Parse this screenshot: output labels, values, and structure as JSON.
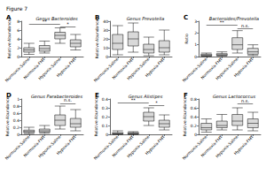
{
  "figure_title": "Figure 7",
  "chart_data": [
    {
      "type": "boxplot",
      "panel": "A",
      "title": "Genus Bacteroides",
      "ylabel": "Relative Abundance",
      "categories": [
        "Normoxia-Saline",
        "Normoxia-FMT",
        "Hypoxia-Saline",
        "Hypoxia-FMT"
      ],
      "boxes": [
        [
          0.5,
          1,
          1.5,
          2,
          3
        ],
        [
          0.8,
          1.2,
          1.8,
          2.5,
          3.5
        ],
        [
          3,
          4,
          4.8,
          5.5,
          6.5
        ],
        [
          1.5,
          2.2,
          3,
          3.8,
          5
        ]
      ],
      "ylim": [
        0,
        8
      ],
      "yticks": [
        0,
        2,
        4,
        6,
        8
      ],
      "grid": false,
      "color": "#d9d9d9",
      "annotations": [
        {
          "from": "Normoxia-Saline",
          "to": "Hypoxia-Saline",
          "label": "**",
          "y": 7.3
        },
        {
          "from": "Hypoxia-Saline",
          "to": "Hypoxia-FMT",
          "label": "*",
          "y": 6.8
        }
      ]
    },
    {
      "type": "boxplot",
      "panel": "B",
      "title": "Genus Prevotella",
      "ylabel": "Relative Abundance",
      "categories": [
        "Normoxia-Saline",
        "Normoxia-FMT",
        "Hypoxia-Saline",
        "Hypoxia-FMT"
      ],
      "boxes": [
        [
          2,
          8,
          15,
          25,
          35
        ],
        [
          5,
          12,
          20,
          28,
          38
        ],
        [
          1,
          4,
          8,
          14,
          22
        ],
        [
          2,
          5,
          10,
          18,
          30
        ]
      ],
      "ylim": [
        0,
        40
      ],
      "yticks": [
        0,
        10,
        20,
        30,
        40
      ],
      "grid": false,
      "color": "#d9d9d9",
      "annotations": []
    },
    {
      "type": "boxplot",
      "panel": "C",
      "title": "Bacteroides/Prevotella",
      "ylabel": "Ratio",
      "categories": [
        "Normoxia-Saline",
        "Normoxia-FMT",
        "Hypoxia-Saline",
        "Hypoxia-FMT"
      ],
      "boxes": [
        [
          0.02,
          0.05,
          0.1,
          0.2,
          0.3
        ],
        [
          0.05,
          0.1,
          0.15,
          0.25,
          0.4
        ],
        [
          0.3,
          0.6,
          1,
          1.6,
          2.2
        ],
        [
          0.1,
          0.2,
          0.4,
          0.7,
          1
        ]
      ],
      "ylim": [
        0,
        3
      ],
      "yticks": [
        0,
        1,
        2,
        3
      ],
      "grid": false,
      "color": "#d9d9d9",
      "annotations": [
        {
          "from": "Normoxia-Saline",
          "to": "Hypoxia-Saline",
          "label": "**",
          "y": 2.7
        },
        {
          "from": "Hypoxia-Saline",
          "to": "Hypoxia-FMT",
          "label": "n.s.",
          "y": 2.4
        }
      ]
    },
    {
      "type": "boxplot",
      "panel": "D",
      "title": "Genus Parabacteroides",
      "ylabel": "Relative Abundance",
      "categories": [
        "Normoxia-Saline",
        "Normoxia-FMT",
        "Hypoxia-Saline",
        "Hypoxia-FMT"
      ],
      "boxes": [
        [
          0.02,
          0.05,
          0.08,
          0.12,
          0.2
        ],
        [
          0.03,
          0.06,
          0.1,
          0.15,
          0.25
        ],
        [
          0.15,
          0.25,
          0.4,
          0.55,
          0.8
        ],
        [
          0.1,
          0.2,
          0.3,
          0.45,
          0.7
        ]
      ],
      "ylim": [
        0,
        1
      ],
      "yticks": [
        0,
        0.2,
        0.4,
        0.6,
        0.8,
        1
      ],
      "grid": false,
      "color": "#d9d9d9",
      "annotations": [
        {
          "from": "Hypoxia-Saline",
          "to": "Hypoxia-FMT",
          "label": "n.s.",
          "y": 0.88
        }
      ]
    },
    {
      "type": "boxplot",
      "panel": "E",
      "title": "Genus Alistipes",
      "ylabel": "Relative Abundance",
      "categories": [
        "Normoxia-Saline",
        "Normoxia-FMT",
        "Hypoxia-Saline",
        "Hypoxia-FMT"
      ],
      "boxes": [
        [
          0,
          0.005,
          0.01,
          0.02,
          0.04
        ],
        [
          0,
          0.005,
          0.01,
          0.02,
          0.03
        ],
        [
          0.1,
          0.15,
          0.2,
          0.25,
          0.3
        ],
        [
          0.05,
          0.08,
          0.12,
          0.16,
          0.22
        ]
      ],
      "ylim": [
        0,
        0.4
      ],
      "yticks": [
        0,
        0.1,
        0.2,
        0.3,
        0.4
      ],
      "grid": false,
      "color": "#d9d9d9",
      "annotations": [
        {
          "from": "Normoxia-Saline",
          "to": "Hypoxia-Saline",
          "label": "**",
          "y": 0.36
        },
        {
          "from": "Hypoxia-Saline",
          "to": "Hypoxia-FMT",
          "label": "*",
          "y": 0.33
        }
      ]
    },
    {
      "type": "boxplot",
      "panel": "F",
      "title": "Genus Lactococcus",
      "ylabel": "Relative Abundance",
      "categories": [
        "Normoxia-Saline",
        "Normoxia-FMT",
        "Hypoxia-Saline",
        "Hypoxia-FMT"
      ],
      "boxes": [
        [
          0.05,
          0.1,
          0.15,
          0.25,
          0.35
        ],
        [
          0.1,
          0.15,
          0.2,
          0.3,
          0.45
        ],
        [
          0.1,
          0.2,
          0.3,
          0.45,
          0.6
        ],
        [
          0.08,
          0.15,
          0.25,
          0.35,
          0.5
        ]
      ],
      "ylim": [
        0,
        0.8
      ],
      "yticks": [
        0,
        0.2,
        0.4,
        0.6,
        0.8
      ],
      "grid": false,
      "color": "#d9d9d9",
      "annotations": [
        {
          "from": "Hypoxia-Saline",
          "to": "Hypoxia-FMT",
          "label": "n.s.",
          "y": 0.7
        }
      ]
    }
  ]
}
